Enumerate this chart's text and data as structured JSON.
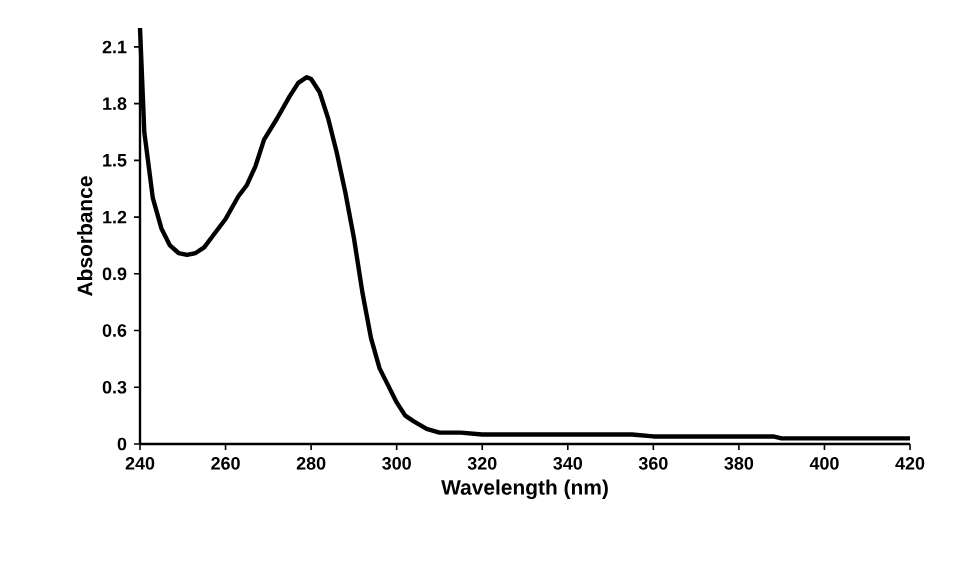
{
  "chart_data": {
    "type": "line",
    "xlabel": "Wavelength (nm)",
    "ylabel": "Absorbance",
    "color": "#000000",
    "x": [
      240,
      241,
      243,
      245,
      247,
      249,
      251,
      253,
      255,
      257,
      260,
      263,
      265,
      267,
      269,
      272,
      275,
      277,
      279,
      280,
      282,
      284,
      286,
      288,
      290,
      292,
      294,
      296,
      298,
      300,
      302,
      304,
      307,
      310,
      315,
      320,
      340,
      355,
      360,
      388,
      390,
      420
    ],
    "values": [
      2.2,
      1.65,
      1.3,
      1.14,
      1.05,
      1.01,
      1.0,
      1.01,
      1.04,
      1.1,
      1.19,
      1.31,
      1.37,
      1.47,
      1.61,
      1.72,
      1.84,
      1.91,
      1.94,
      1.93,
      1.86,
      1.72,
      1.54,
      1.33,
      1.09,
      0.8,
      0.56,
      0.4,
      0.31,
      0.22,
      0.15,
      0.12,
      0.08,
      0.06,
      0.06,
      0.05,
      0.05,
      0.05,
      0.04,
      0.04,
      0.03,
      0.03
    ],
    "xlim": [
      240,
      420
    ],
    "ylim": [
      0,
      2.2
    ],
    "xticks": [
      240,
      260,
      280,
      300,
      320,
      340,
      360,
      380,
      400,
      420
    ],
    "yticks": [
      0,
      0.3,
      0.6,
      0.9,
      1.2,
      1.5,
      1.8,
      2.1
    ]
  }
}
